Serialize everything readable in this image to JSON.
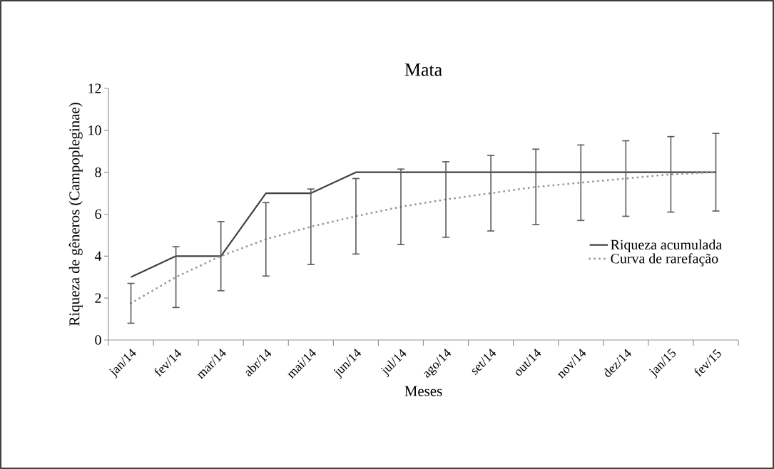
{
  "chart_data": {
    "type": "line",
    "title": "Mata",
    "xlabel": "Meses",
    "ylabel": "Riqueza de gêneros (Campopleginae)",
    "categories": [
      "jan/14",
      "fev/14",
      "mar/14",
      "abr/14",
      "mai/14",
      "jun/14",
      "jul/14",
      "ago/14",
      "set/14",
      "out/14",
      "nov/14",
      "dez/14",
      "jan/15",
      "fev/15"
    ],
    "ylim": [
      0,
      12
    ],
    "yticks": [
      0,
      2,
      4,
      6,
      8,
      10,
      12
    ],
    "legend": "right",
    "grid": false,
    "series": [
      {
        "name": "Riqueza acumulada",
        "color": "#404040",
        "line_style": "solid",
        "values": [
          3,
          4,
          4,
          7,
          7,
          8,
          8,
          8,
          8,
          8,
          8,
          8,
          8,
          8
        ]
      },
      {
        "name": "Curva de rarefação",
        "color": "#999999",
        "line_style": "dotted",
        "values": [
          1.75,
          3.0,
          4.0,
          4.8,
          5.4,
          5.9,
          6.35,
          6.7,
          7.0,
          7.3,
          7.5,
          7.7,
          7.9,
          8.0
        ],
        "errors": [
          0.95,
          1.45,
          1.65,
          1.75,
          1.8,
          1.8,
          1.8,
          1.8,
          1.8,
          1.8,
          1.8,
          1.8,
          1.8,
          1.85
        ]
      }
    ]
  }
}
